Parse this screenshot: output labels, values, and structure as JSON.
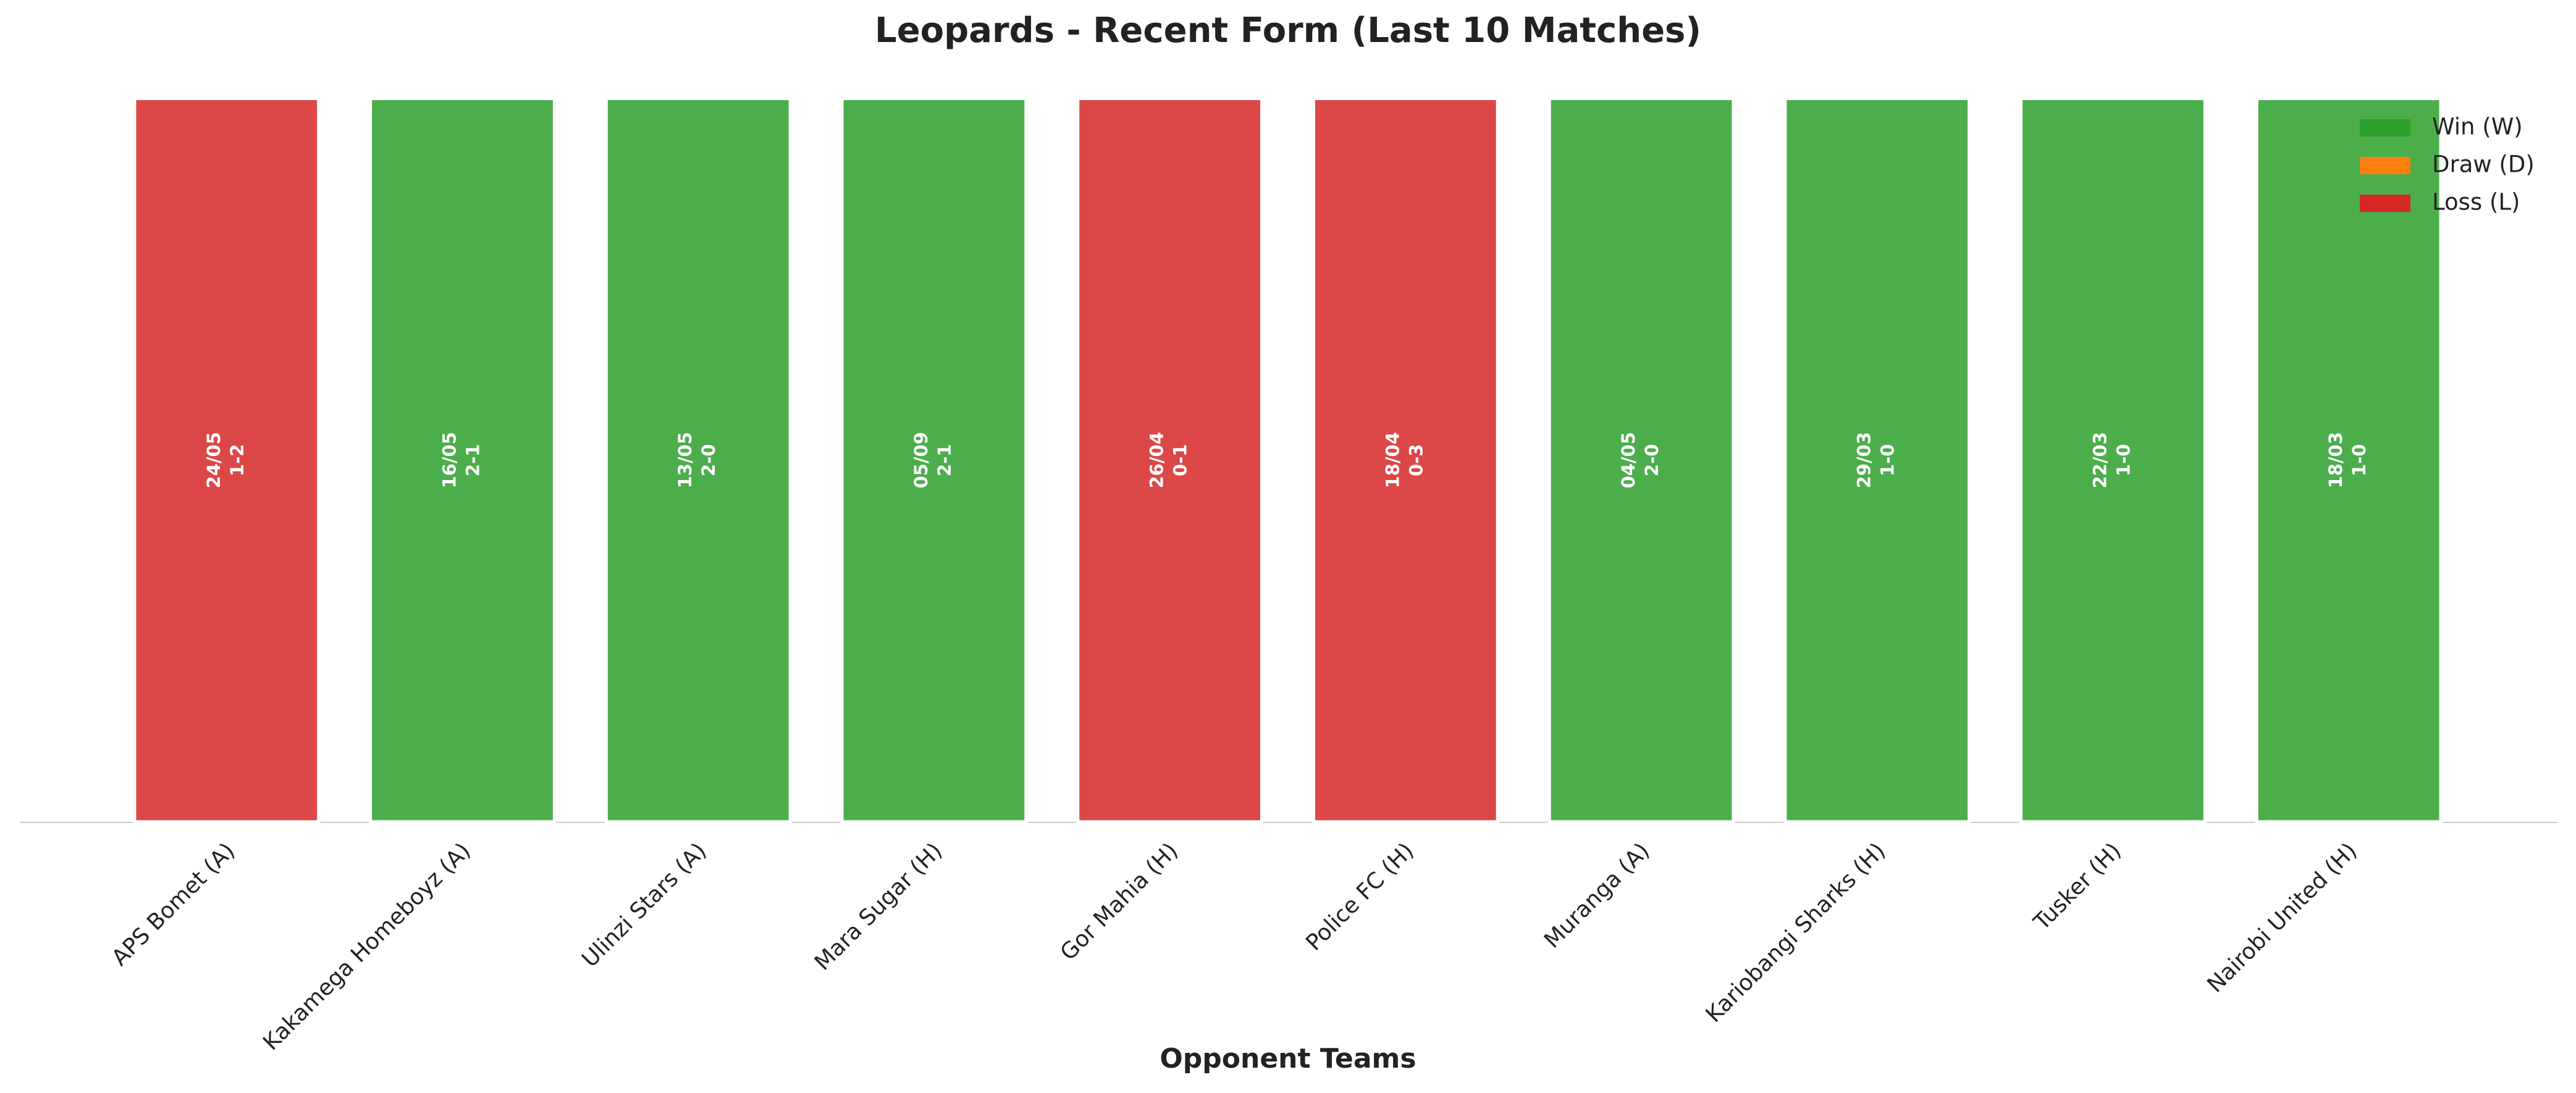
{
  "chart_data": {
    "type": "bar",
    "title": "Leopards - Recent Form (Last 10 Matches)",
    "x_label": "Opponent Teams",
    "categories": [
      "APS Bomet (A)",
      "Kakamega Homeboyz (A)",
      "Ulinzi Stars (A)",
      "Mara Sugar (H)",
      "Gor Mahia (H)",
      "Police FC (H)",
      "Muranga (A)",
      "Kariobangi Sharks (H)",
      "Tusker (H)",
      "Nairobi United (H)"
    ],
    "values": [
      1,
      1,
      1,
      1,
      1,
      1,
      1,
      1,
      1,
      1
    ],
    "dates": [
      "24/05",
      "16/05",
      "13/05",
      "05/09",
      "26/04",
      "18/04",
      "04/05",
      "29/03",
      "22/03",
      "18/03"
    ],
    "scores": [
      "1-2",
      "2-1",
      "2-0",
      "2-1",
      "0-1",
      "0-3",
      "2-0",
      "1-0",
      "1-0",
      "1-0"
    ],
    "colors": [
      "#d62728",
      "#2ca02c",
      "#2ca02c",
      "#2ca02c",
      "#d62728",
      "#d62728",
      "#2ca02c",
      "#2ca02c",
      "#2ca02c",
      "#2ca02c"
    ],
    "legend": [
      {
        "name": "Win (W)",
        "color": "#2ca02c"
      },
      {
        "name": "Draw (D)",
        "color": "#ff7f0e"
      },
      {
        "name": "Loss (L)",
        "color": "#d62728"
      }
    ],
    "legend_position": "upper right",
    "ylim": [
      0,
      1.05
    ]
  }
}
